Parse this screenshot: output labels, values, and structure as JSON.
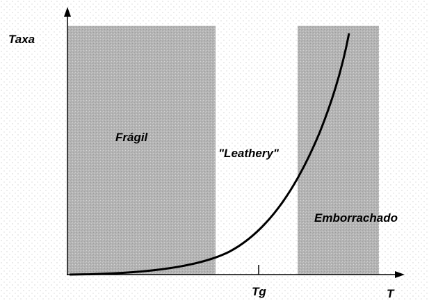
{
  "y_axis_label": "Taxa",
  "x_axis_label": "T",
  "x_tick_label": "Tg",
  "regions": [
    {
      "label": "Frágil"
    },
    {
      "label": "\"Leathery\""
    },
    {
      "label": "Emborrachado"
    }
  ]
}
